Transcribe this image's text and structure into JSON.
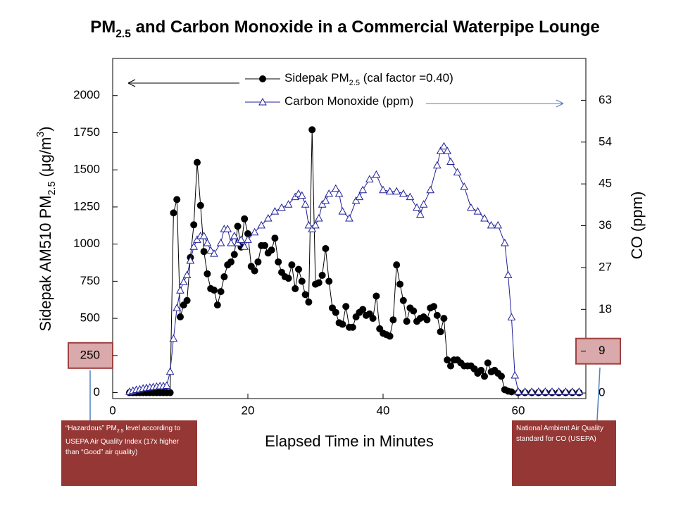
{
  "chart_data": {
    "type": "line",
    "title": "PM2.5 and Carbon Monoxide in a Commercial Waterpipe Lounge",
    "x_label": "Elapsed Time in Minutes",
    "y_label": "Sidepak AM510 PM2.5 (μg/m3)",
    "y2_label": "CO (ppm)",
    "xlim": [
      0,
      70
    ],
    "xticks": [
      0,
      20,
      40,
      60
    ],
    "ylim": [
      -40,
      2250
    ],
    "yticks": [
      0,
      250,
      500,
      750,
      1000,
      1250,
      1500,
      1750,
      2000
    ],
    "y2lim": [
      -1.2,
      72
    ],
    "y2ticks": [
      0,
      9,
      18,
      27,
      36,
      45,
      54,
      63
    ],
    "series": [
      {
        "name": "Sidepak PM2.5 (cal factor =0.40)",
        "color": "#000000",
        "marker": "circle",
        "x": [
          2.5,
          3,
          3.5,
          4,
          4.5,
          5,
          5.5,
          6,
          6.5,
          7,
          7.5,
          8,
          8.5,
          9,
          9.5,
          10,
          10.5,
          11,
          11.5,
          12,
          12.5,
          13,
          13.5,
          14,
          14.5,
          15,
          15.5,
          16,
          16.5,
          17,
          17.5,
          18,
          18.5,
          19,
          19.5,
          20,
          20.5,
          21,
          21.5,
          22,
          22.5,
          23,
          23.5,
          24,
          24.5,
          25,
          25.5,
          26,
          26.5,
          27,
          27.5,
          28,
          28.5,
          29,
          29.5,
          30,
          30.5,
          31,
          31.5,
          32,
          32.5,
          33,
          33.5,
          34,
          34.5,
          35,
          35.5,
          36,
          36.5,
          37,
          37.5,
          38,
          38.5,
          39,
          39.5,
          40,
          40.5,
          41,
          41.5,
          42,
          42.5,
          43,
          43.5,
          44,
          44.5,
          45,
          45.5,
          46,
          46.5,
          47,
          47.5,
          48,
          48.5,
          49,
          49.5,
          50,
          50.5,
          51,
          51.5,
          52,
          52.5,
          53,
          53.5,
          54,
          54.5,
          55,
          55.5,
          56,
          56.5,
          57,
          57.5,
          58,
          58.5,
          59,
          60,
          61,
          62,
          63,
          64,
          65,
          66,
          67,
          68,
          69
        ],
        "values": [
          0,
          0,
          0,
          0,
          0,
          0,
          0,
          0,
          0,
          0,
          0,
          0,
          0,
          1210,
          1300,
          510,
          590,
          620,
          910,
          1130,
          1550,
          1260,
          950,
          800,
          700,
          690,
          590,
          680,
          780,
          860,
          880,
          930,
          1120,
          980,
          1170,
          1070,
          850,
          820,
          880,
          990,
          990,
          940,
          960,
          1040,
          880,
          810,
          780,
          770,
          860,
          700,
          830,
          750,
          660,
          610,
          1770,
          730,
          740,
          790,
          970,
          750,
          570,
          540,
          470,
          460,
          580,
          440,
          440,
          510,
          540,
          560,
          520,
          530,
          500,
          650,
          430,
          400,
          390,
          380,
          490,
          860,
          730,
          620,
          480,
          570,
          550,
          480,
          500,
          510,
          490,
          570,
          580,
          520,
          410,
          500,
          220,
          180,
          220,
          220,
          200,
          180,
          180,
          180,
          160,
          130,
          150,
          110,
          200,
          140,
          150,
          130,
          110,
          20,
          10,
          5,
          0,
          0,
          0,
          0,
          0,
          0,
          0,
          0,
          0,
          0
        ]
      },
      {
        "name": "Carbon Monoxide (ppm)",
        "color": "#1f1f9a",
        "marker": "triangle",
        "axis": "y2",
        "x": [
          2.5,
          3,
          3.5,
          4,
          4.5,
          5,
          5.5,
          6,
          6.5,
          7,
          7.5,
          8,
          8.5,
          9,
          9.5,
          10,
          10.5,
          11,
          11.5,
          12,
          12.5,
          13,
          13.5,
          14,
          14.5,
          15,
          16,
          16.5,
          17,
          17.5,
          18,
          18.5,
          19,
          19.5,
          20,
          21,
          22,
          23,
          24,
          25,
          26,
          27,
          27.5,
          28,
          28.5,
          29,
          29.5,
          30,
          30.5,
          31,
          31.5,
          32,
          33,
          33.5,
          34,
          35,
          36,
          36.5,
          37,
          38,
          39,
          40,
          41,
          42,
          43,
          44,
          45,
          45.5,
          46,
          47,
          48,
          48.5,
          49,
          49.5,
          50,
          51,
          52,
          53,
          54,
          55,
          56,
          57,
          58,
          58.5,
          59,
          59.5,
          60,
          61,
          62,
          63,
          64,
          65,
          66,
          67,
          68,
          69
        ],
        "values": [
          0.3,
          0.5,
          0.7,
          0.8,
          1,
          1.1,
          1.2,
          1.3,
          1.4,
          1.5,
          1.5,
          1.6,
          4.6,
          11.7,
          18.3,
          22.1,
          23.9,
          25.4,
          28.5,
          31.5,
          33,
          33.8,
          33.8,
          32.3,
          30.7,
          30,
          32.3,
          35.3,
          35.3,
          32.3,
          33.8,
          32.3,
          33,
          31.5,
          33,
          34.6,
          36.1,
          37.6,
          39.1,
          39.9,
          40.6,
          42.2,
          42.9,
          42.5,
          40.6,
          36.1,
          35.3,
          36.1,
          37.6,
          40.6,
          41.4,
          42.9,
          44,
          42.9,
          39.1,
          37.6,
          41.4,
          42.2,
          43.7,
          46,
          47,
          43.7,
          43.4,
          43.4,
          42.9,
          42.2,
          39.9,
          38.4,
          40.6,
          43.7,
          49,
          52.1,
          53.1,
          52.1,
          49.8,
          47.5,
          44.4,
          39.9,
          39.1,
          37.6,
          36.1,
          36.1,
          32.3,
          25.4,
          16.3,
          3.8,
          0.3,
          0.3,
          0.3,
          0.3,
          0.3,
          0.3,
          0.3,
          0.3,
          0.3,
          0.3
        ]
      }
    ],
    "annotations": [
      {
        "text": "“Hazardous” PM2.5 level according to USEPA Air Quality Index (17x higher than “Good” air quality)",
        "highlight_axis": "y",
        "highlight_tick": 1
      },
      {
        "text": "National Ambient Air Quality standard for CO (USEPA)",
        "highlight_axis": "y2",
        "highlight_tick": 1
      }
    ]
  }
}
